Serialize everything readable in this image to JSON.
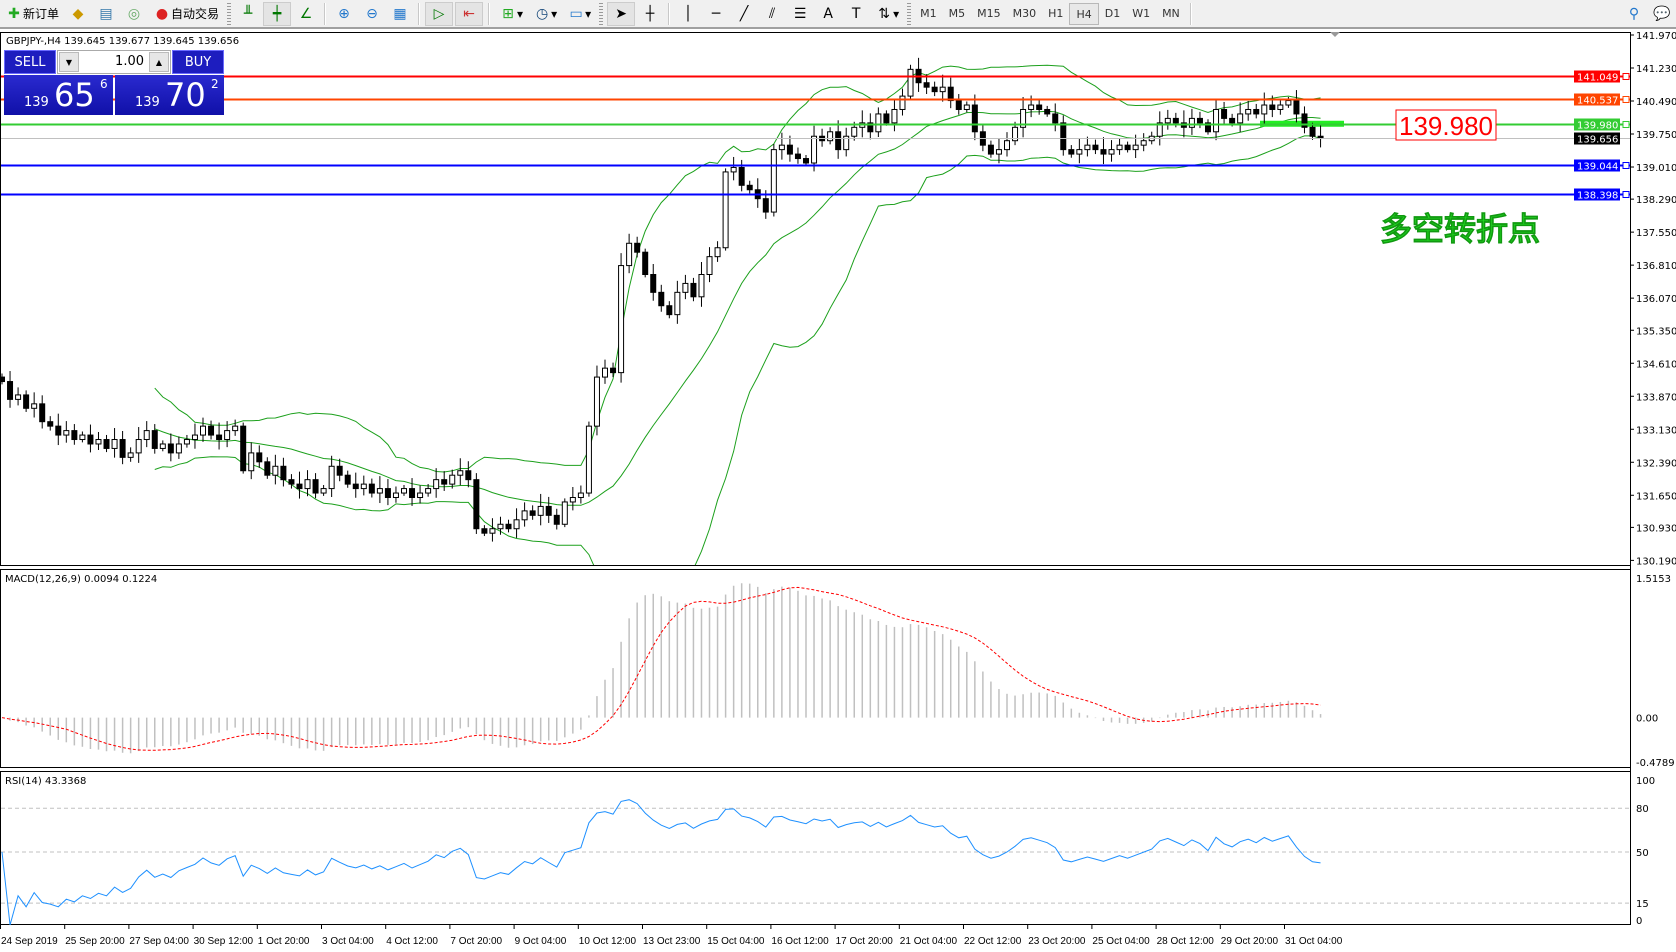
{
  "toolbar": {
    "new_order": "新订单",
    "auto_trading": "自动交易",
    "timeframes": [
      "M1",
      "M5",
      "M15",
      "M30",
      "H1",
      "H4",
      "D1",
      "W1",
      "MN"
    ],
    "active_timeframe": "H4"
  },
  "header": {
    "symbol_line": "GBPJPY-,H4  139.645 139.677 139.645 139.656"
  },
  "trade_panel": {
    "sell_label": "SELL",
    "buy_label": "BUY",
    "lot": "1.00",
    "sell_price": {
      "big": "139",
      "main": "65",
      "sup": "6"
    },
    "buy_price": {
      "big": "139",
      "main": "70",
      "sup": "2"
    }
  },
  "annotations": {
    "price_box": "139.980",
    "text": "多空转折点"
  },
  "chart_data": {
    "type": "candlestick",
    "symbol": "GBPJPY-",
    "timeframe": "H4",
    "ohlc_last": {
      "open": 139.645,
      "high": 139.677,
      "low": 139.645,
      "close": 139.656
    },
    "closes": [
      134.2,
      133.8,
      133.9,
      133.6,
      133.7,
      133.3,
      133.2,
      133.0,
      133.1,
      132.9,
      133.0,
      132.8,
      132.9,
      132.7,
      132.9,
      132.5,
      132.6,
      132.9,
      133.1,
      132.7,
      132.8,
      132.6,
      132.8,
      132.9,
      133.0,
      133.2,
      133.0,
      132.9,
      133.1,
      133.2,
      132.2,
      132.6,
      132.4,
      132.1,
      132.3,
      132.0,
      131.9,
      131.8,
      132.0,
      131.7,
      131.8,
      132.3,
      132.1,
      131.9,
      131.8,
      131.9,
      131.7,
      131.8,
      131.6,
      131.7,
      131.8,
      131.6,
      131.7,
      131.8,
      132.0,
      131.9,
      132.1,
      132.2,
      132.0,
      130.9,
      130.8,
      130.9,
      131.0,
      130.9,
      131.1,
      131.3,
      131.2,
      131.4,
      131.2,
      131.0,
      131.5,
      131.6,
      131.7,
      133.2,
      134.3,
      134.5,
      134.4,
      136.8,
      137.3,
      137.1,
      136.6,
      136.2,
      135.9,
      135.7,
      136.2,
      136.4,
      136.1,
      136.6,
      137.0,
      137.2,
      138.9,
      139.0,
      138.6,
      138.5,
      138.3,
      138.0,
      139.4,
      139.5,
      139.3,
      139.2,
      139.1,
      139.7,
      139.6,
      139.8,
      139.4,
      139.7,
      139.9,
      140.0,
      139.8,
      140.2,
      140.0,
      140.3,
      140.6,
      141.2,
      140.9,
      140.8,
      140.7,
      140.8,
      140.5,
      140.3,
      140.4,
      139.8,
      139.5,
      139.3,
      139.4,
      139.6,
      139.9,
      140.3,
      140.4,
      140.3,
      140.2,
      140.0,
      139.4,
      139.3,
      139.4,
      139.5,
      139.4,
      139.3,
      139.4,
      139.5,
      139.4,
      139.5,
      139.6,
      139.7,
      140.0,
      140.1,
      140.0,
      139.9,
      140.1,
      140.0,
      139.8,
      140.3,
      140.1,
      140.0,
      140.2,
      140.3,
      140.2,
      140.4,
      140.3,
      140.4,
      140.5,
      140.2,
      139.9,
      139.7,
      139.656
    ],
    "time_labels": [
      "24 Sep 2019",
      "25 Sep 20:00",
      "27 Sep 04:00",
      "30 Sep 12:00",
      "1 Oct 20:00",
      "3 Oct 04:00",
      "4 Oct 12:00",
      "7 Oct 20:00",
      "9 Oct 04:00",
      "10 Oct 12:00",
      "13 Oct 23:00",
      "15 Oct 04:00",
      "16 Oct 12:00",
      "17 Oct 20:00",
      "21 Oct 04:00",
      "22 Oct 12:00",
      "23 Oct 20:00",
      "25 Oct 04:00",
      "28 Oct 12:00",
      "29 Oct 20:00",
      "31 Oct 04:00"
    ],
    "price_ticks": [
      "141.970",
      "141.230",
      "140.490",
      "139.750",
      "139.010",
      "138.290",
      "137.550",
      "136.810",
      "136.070",
      "135.350",
      "134.610",
      "133.870",
      "133.130",
      "132.390",
      "131.650",
      "130.930",
      "130.190"
    ],
    "ylim": [
      130.19,
      141.97
    ],
    "bollinger": {
      "period": 20,
      "deviation": 2,
      "color": "#1ca01c"
    },
    "hlines": [
      {
        "price": "141.049",
        "color": "#ff0000"
      },
      {
        "price": "140.537",
        "color": "#ff4500"
      },
      {
        "price": "139.980",
        "color": "#33cc33"
      },
      {
        "price": "139.656",
        "color": "#000000",
        "current": true
      },
      {
        "price": "139.044",
        "color": "#0000ff"
      },
      {
        "price": "138.398",
        "color": "#0000ff"
      }
    ],
    "macd": {
      "label": "MACD(12,26,9) 0.0094 0.1224",
      "ticks": [
        "1.5153",
        "0.00",
        "-0.4789"
      ],
      "ylim": [
        -0.4789,
        1.5153
      ],
      "histogram_color": "#c0c0c0",
      "signal_color": "#ff0000"
    },
    "rsi": {
      "label": "RSI(14) 43.3368",
      "ticks": [
        "100",
        "80",
        "50",
        "15",
        "0"
      ],
      "levels": [
        80,
        50,
        15
      ],
      "ylim": [
        0,
        100
      ],
      "color": "#1e90ff"
    }
  }
}
